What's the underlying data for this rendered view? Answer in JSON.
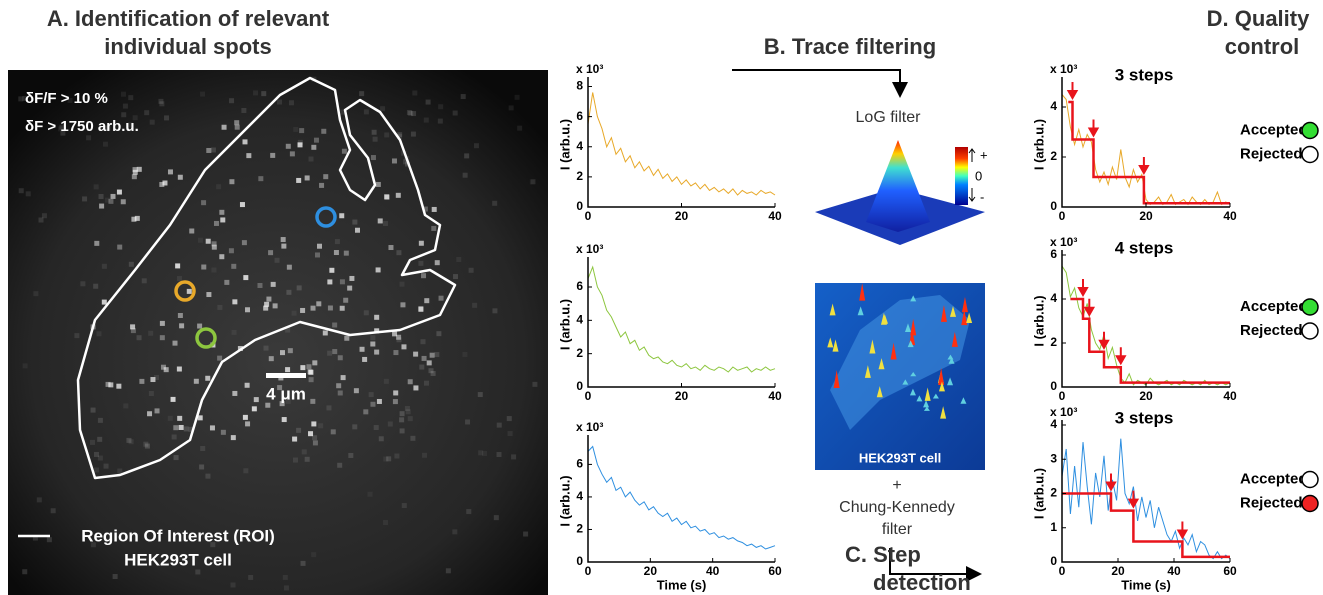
{
  "panel_a": {
    "title_lines": [
      "A. Identification of relevant",
      "individual spots"
    ],
    "thresholds": [
      "δF/F > 10 %",
      "δF > 1750 arb.u."
    ],
    "scale_bar": "4 μm",
    "roi_legend": [
      "Region Of Interest (ROI)",
      "HEK293T cell"
    ]
  },
  "panel_b": {
    "title": "B. Trace filtering",
    "log_filter": "LoG filter",
    "colorbar_labels": [
      "+",
      "0",
      "-"
    ],
    "cell_label": "HEK293T cell",
    "plus": "+",
    "ck_filter": [
      "Chung-Kennedy",
      "filter"
    ]
  },
  "panel_c": {
    "title_lines": [
      "C. Step",
      "detection"
    ]
  },
  "panel_d": {
    "title_lines": [
      "D. Quality",
      "control"
    ],
    "accepted": "Accepted",
    "rejected": "Rejected",
    "accepted_color": "#33dd33",
    "rejected_color": "#ee2222"
  },
  "chart_data": [
    {
      "type": "line",
      "y_multiplier": "x 10³",
      "ylabel": "I (arb.u.)",
      "xlim": [
        0,
        40
      ],
      "ylim": [
        0,
        8.3
      ],
      "xticks": [
        0,
        20,
        40
      ],
      "yticks": [
        0,
        2,
        4,
        6,
        8
      ],
      "series": [
        {
          "color": "#e8a92a",
          "x": [
            0,
            1,
            2,
            3,
            4,
            5,
            6,
            7,
            8,
            9,
            10,
            11,
            12,
            13,
            14,
            15,
            16,
            17,
            18,
            19,
            20,
            21,
            22,
            23,
            24,
            25,
            26,
            27,
            28,
            29,
            30,
            31,
            32,
            33,
            34,
            35,
            36,
            37,
            38,
            39,
            40
          ],
          "values": [
            5.5,
            7.6,
            6.0,
            5.2,
            4.0,
            4.6,
            3.5,
            3.9,
            3.0,
            3.4,
            2.6,
            3.0,
            2.4,
            2.7,
            2.1,
            2.5,
            1.9,
            2.2,
            1.7,
            2.0,
            1.5,
            1.8,
            1.4,
            1.6,
            1.2,
            1.5,
            1.1,
            1.3,
            1.0,
            1.2,
            0.9,
            1.2,
            0.8,
            1.1,
            0.9,
            1.0,
            0.8,
            1.1,
            0.9,
            1.0,
            0.8
          ]
        }
      ]
    },
    {
      "type": "line",
      "y_multiplier": "x 10³",
      "ylabel": "I (arb.u.)",
      "xlim": [
        0,
        40
      ],
      "ylim": [
        0,
        7.5
      ],
      "xticks": [
        0,
        20,
        40
      ],
      "yticks": [
        0,
        2,
        4,
        6
      ],
      "series": [
        {
          "color": "#8dc63f",
          "x": [
            0,
            1,
            2,
            3,
            4,
            5,
            6,
            7,
            8,
            9,
            10,
            11,
            12,
            13,
            14,
            15,
            16,
            17,
            18,
            19,
            20,
            21,
            22,
            23,
            24,
            25,
            26,
            27,
            28,
            29,
            30,
            31,
            32,
            33,
            34,
            35,
            36,
            37,
            38,
            39,
            40
          ],
          "values": [
            6.5,
            7.2,
            6.0,
            5.5,
            4.6,
            4.2,
            3.6,
            3.0,
            3.3,
            2.6,
            2.8,
            2.2,
            2.4,
            1.9,
            1.7,
            1.8,
            1.5,
            1.4,
            1.6,
            1.3,
            1.2,
            1.4,
            1.1,
            1.2,
            1.0,
            1.3,
            1.1,
            1.0,
            1.2,
            1.1,
            0.9,
            1.2,
            1.0,
            1.1,
            1.2,
            0.9,
            1.1,
            1.0,
            1.2,
            1.0,
            1.1
          ]
        }
      ]
    },
    {
      "type": "line",
      "y_multiplier": "x 10³",
      "ylabel": "I (arb.u.)",
      "xlabel": "Time (s)",
      "xlim": [
        0,
        60
      ],
      "ylim": [
        0,
        7.5
      ],
      "xticks": [
        0,
        20,
        40,
        60
      ],
      "yticks": [
        0,
        2,
        4,
        6
      ],
      "series": [
        {
          "color": "#2e8fe0",
          "x": [
            0,
            1.5,
            3,
            4.5,
            6,
            7.5,
            9,
            10.5,
            12,
            13.5,
            15,
            16.5,
            18,
            19.5,
            21,
            22.5,
            24,
            25.5,
            27,
            28.5,
            30,
            31.5,
            33,
            34.5,
            36,
            37.5,
            39,
            40.5,
            42,
            43.5,
            45,
            46.5,
            48,
            49.5,
            51,
            52.5,
            54,
            55.5,
            57,
            58.5,
            60
          ],
          "values": [
            6.8,
            7.1,
            6.0,
            5.4,
            4.9,
            5.2,
            4.4,
            4.6,
            4.0,
            4.3,
            3.8,
            3.5,
            3.7,
            3.2,
            3.4,
            3.0,
            2.8,
            3.0,
            2.5,
            2.7,
            2.3,
            2.5,
            2.1,
            2.2,
            1.9,
            2.0,
            1.7,
            1.8,
            1.5,
            1.6,
            1.4,
            1.5,
            1.3,
            1.2,
            1.0,
            1.1,
            0.9,
            1.0,
            0.8,
            0.9,
            1.0
          ]
        }
      ]
    },
    {
      "type": "line",
      "y_multiplier": "x 10³",
      "ylabel": "I (arb.u.)",
      "xlim": [
        0,
        40
      ],
      "ylim": [
        0,
        5
      ],
      "xticks": [
        0,
        20,
        40
      ],
      "yticks": [
        0,
        2,
        4
      ],
      "steps_label": "3 steps",
      "status": "accepted",
      "series": [
        {
          "color": "#e8a92a",
          "x": [
            0,
            1,
            2,
            3,
            4,
            5,
            6,
            7,
            8,
            9,
            10,
            11,
            12,
            13,
            14,
            15,
            16,
            17,
            18,
            19,
            20,
            21,
            22,
            23,
            24,
            25,
            26,
            27,
            28,
            29,
            30,
            31,
            32,
            33,
            34,
            35,
            36,
            37,
            38,
            39,
            40
          ],
          "values": [
            4.5,
            4.3,
            3.2,
            2.5,
            3.1,
            2.4,
            2.9,
            2.6,
            1.5,
            1.0,
            1.4,
            0.9,
            1.6,
            1.1,
            2.3,
            1.2,
            0.8,
            1.5,
            1.0,
            1.3,
            0.3,
            0.1,
            0.2,
            0.4,
            0.1,
            0.2,
            0.5,
            0.1,
            0.2,
            0.3,
            0.1,
            0.4,
            0.2,
            0.1,
            0.3,
            0.1,
            0.2,
            0.6,
            0.1,
            0.2,
            0.1
          ]
        },
        {
          "color": "#e8141c",
          "x": [
            1.5,
            2.5,
            2.5,
            7.5,
            7.5,
            19.5,
            19.5,
            40
          ],
          "values": [
            4.2,
            4.2,
            2.7,
            2.7,
            1.2,
            1.2,
            0.15,
            0.15
          ]
        }
      ]
    },
    {
      "type": "line",
      "y_multiplier": "x 10³",
      "ylabel": "I (arb.u.)",
      "xlim": [
        0,
        40
      ],
      "ylim": [
        0,
        6
      ],
      "xticks": [
        0,
        20,
        40
      ],
      "yticks": [
        0,
        2,
        4,
        6
      ],
      "steps_label": "4 steps",
      "status": "accepted",
      "series": [
        {
          "color": "#8dc63f",
          "x": [
            0,
            1,
            2,
            3,
            4,
            5,
            6,
            7,
            8,
            9,
            10,
            11,
            12,
            13,
            14,
            15,
            16,
            17,
            18,
            19,
            20,
            21,
            22,
            23,
            24,
            25,
            26,
            27,
            28,
            29,
            30,
            31,
            32,
            33,
            34,
            35,
            36,
            37,
            38,
            39,
            40
          ],
          "values": [
            5.5,
            5.2,
            4.1,
            4.5,
            3.6,
            3.2,
            3.8,
            2.6,
            2.0,
            1.7,
            2.4,
            1.3,
            1.8,
            1.0,
            0.4,
            0.2,
            0.6,
            0.1,
            0.3,
            0.2,
            0.1,
            0.4,
            0.2,
            0.1,
            0.2,
            0.3,
            0.1,
            0.2,
            0.1,
            0.3,
            0.2,
            0.1,
            0.2,
            0.1,
            0.3,
            0.1,
            0.2,
            0.1,
            0.2,
            0.1,
            0.2
          ]
        },
        {
          "color": "#e8141c",
          "x": [
            2,
            5,
            5,
            6.5,
            6.5,
            10,
            10,
            14,
            14,
            40
          ],
          "values": [
            4.0,
            4.0,
            3.1,
            3.1,
            1.6,
            1.6,
            0.9,
            0.9,
            0.2,
            0.2
          ]
        }
      ]
    },
    {
      "type": "line",
      "y_multiplier": "x 10³",
      "ylabel": "I (arb.u.)",
      "xlabel": "Time (s)",
      "xlim": [
        0,
        60
      ],
      "ylim": [
        0,
        4
      ],
      "xticks": [
        0,
        20,
        40,
        60
      ],
      "yticks": [
        0,
        1,
        2,
        3,
        4
      ],
      "steps_label": "3 steps",
      "status": "rejected",
      "series": [
        {
          "color": "#2e8fe0",
          "x": [
            0,
            1.5,
            3,
            4.5,
            6,
            7.5,
            9,
            10.5,
            12,
            13.5,
            15,
            16.5,
            18,
            19.5,
            21,
            22.5,
            24,
            25.5,
            27,
            28.5,
            30,
            31.5,
            33,
            34.5,
            36,
            37.5,
            39,
            40.5,
            42,
            43.5,
            45,
            46.5,
            48,
            49.5,
            51,
            52.5,
            54,
            55.5,
            57,
            58.5,
            60
          ],
          "values": [
            2.5,
            3.3,
            1.4,
            2.8,
            1.6,
            3.5,
            2.2,
            1.1,
            2.6,
            1.9,
            3.1,
            1.5,
            2.4,
            1.8,
            3.6,
            2.0,
            1.7,
            2.2,
            1.2,
            1.9,
            1.3,
            1.8,
            1.0,
            1.6,
            1.2,
            0.8,
            0.6,
            0.9,
            0.4,
            0.7,
            0.5,
            0.8,
            0.3,
            0.6,
            0.5,
            0.2,
            0.1,
            0.3,
            0.1,
            0.2,
            0.1
          ]
        },
        {
          "color": "#e8141c",
          "x": [
            0,
            17.5,
            17.5,
            25.5,
            25.5,
            43,
            43,
            60
          ],
          "values": [
            2.0,
            2.0,
            1.5,
            1.5,
            0.6,
            0.6,
            0.15,
            0.15
          ]
        }
      ]
    }
  ]
}
